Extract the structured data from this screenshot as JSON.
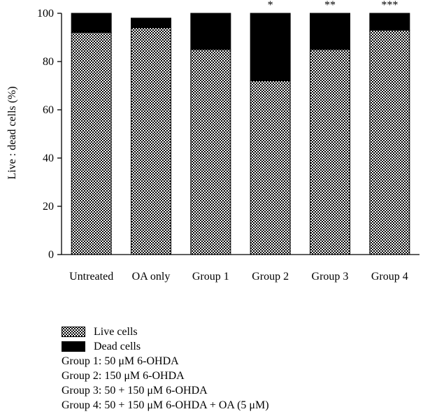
{
  "chart_data": {
    "type": "bar",
    "stacked": true,
    "categories": [
      "Untreated",
      "OA only",
      "Group 1",
      "Group 2",
      "Group 3",
      "Group 4"
    ],
    "series": [
      {
        "name": "Live cells",
        "values": [
          92,
          94,
          85,
          72,
          85,
          93
        ],
        "pattern": "checkered"
      },
      {
        "name": "Dead cells",
        "values": [
          8,
          4,
          15,
          28,
          15,
          7
        ],
        "color": "#000000"
      }
    ],
    "annotations": [
      "",
      "",
      "",
      "*",
      "**",
      "***"
    ],
    "ylabel": "Live : dead cells (%)",
    "xlabel": "",
    "ylim": [
      0,
      100
    ],
    "yticks": [
      "0",
      "20",
      "40",
      "60",
      "80",
      "100"
    ],
    "grid": false,
    "legend_position": "bottom-left"
  },
  "legend": {
    "notes": [
      "Group 1: 50 μM 6-OHDA",
      "Group 2: 150 μM 6-OHDA",
      "Group 3: 50 + 150 μM 6-OHDA",
      "Group 4: 50 + 150 μM 6-OHDA + OA (5 μM)"
    ]
  }
}
